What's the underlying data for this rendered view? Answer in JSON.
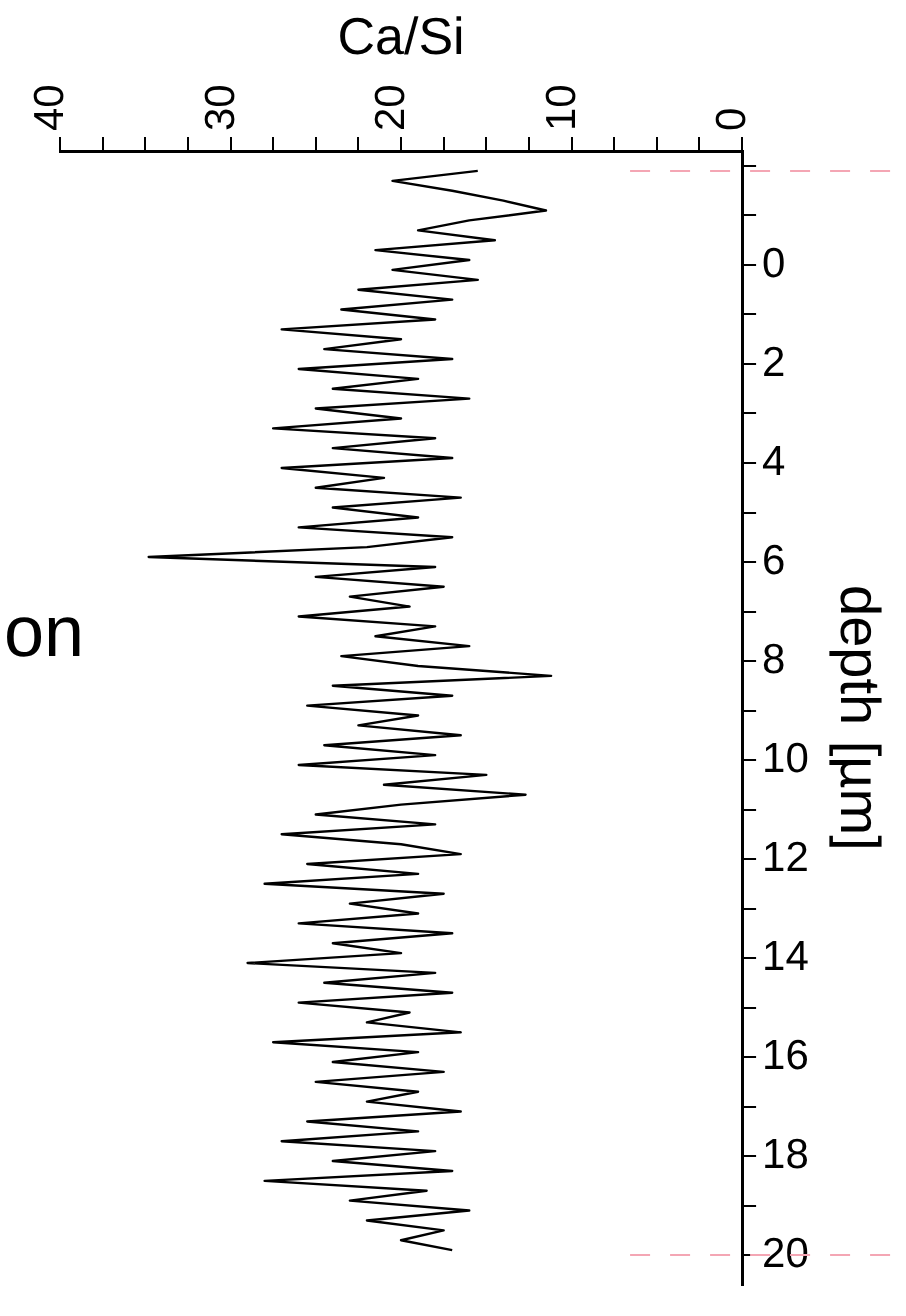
{
  "chart_data": {
    "type": "line",
    "xlabel": "Ca/Si",
    "ylabel": "depth [µm]",
    "annotations": [
      "on"
    ],
    "xlim": [
      40,
      0
    ],
    "xticks": [
      0,
      {
        "value": 2.5,
        "label": null
      },
      {
        "value": 5,
        "label": null
      },
      {
        "value": 7.5,
        "label": null
      },
      10,
      {
        "value": 12.5,
        "label": null
      },
      {
        "value": 15,
        "label": null
      },
      {
        "value": 17.5,
        "label": null
      },
      20,
      {
        "value": 22.5,
        "label": null
      },
      {
        "value": 25,
        "label": null
      },
      {
        "value": 27.5,
        "label": null
      },
      30,
      {
        "value": 32.5,
        "label": null
      },
      {
        "value": 35,
        "label": null
      },
      {
        "value": 37.5,
        "label": null
      },
      40
    ],
    "ylim": [
      20.6,
      -2.3
    ],
    "yticks": [
      {
        "value": -2,
        "label": null
      },
      {
        "value": -1,
        "label": null
      },
      0,
      {
        "value": 1,
        "label": null
      },
      2,
      {
        "value": 3,
        "label": null
      },
      4,
      {
        "value": 5,
        "label": null
      },
      6,
      {
        "value": 7,
        "label": null
      },
      8,
      {
        "value": 9,
        "label": null
      },
      10,
      {
        "value": 11,
        "label": null
      },
      12,
      {
        "value": 13,
        "label": null
      },
      14,
      {
        "value": 15,
        "label": null
      },
      16,
      {
        "value": 17,
        "label": null
      },
      18,
      {
        "value": 19,
        "label": null
      },
      20
    ],
    "grid": false,
    "legend": false,
    "marker": "none",
    "line_style": "solid",
    "ref_lines": [
      {
        "axis": "y",
        "value": -1.9,
        "color": "#f4a6b4",
        "line_style": "dashed"
      },
      {
        "axis": "y",
        "value": 20,
        "color": "#f4a6b4",
        "line_style": "dashed"
      }
    ],
    "series": [
      {
        "color": "#000000",
        "values": [
          -1.9,
          -1.7,
          -1.5,
          -1.3,
          -1.1,
          -0.9,
          -0.7,
          -0.5,
          -0.3,
          -0.1,
          0.1,
          0.3,
          0.5,
          0.7,
          0.9,
          1.1,
          1.3,
          1.5,
          1.7,
          1.9,
          2.1,
          2.3,
          2.5,
          2.7,
          2.9,
          3.1,
          3.3,
          3.5,
          3.7,
          3.9,
          4.1,
          4.3,
          4.5,
          4.7,
          4.9,
          5.1,
          5.3,
          5.5,
          5.7,
          5.9,
          6.1,
          6.3,
          6.5,
          6.7,
          6.9,
          7.1,
          7.3,
          7.5,
          7.7,
          7.9,
          8.1,
          8.3,
          8.5,
          8.7,
          8.9,
          9.1,
          9.3,
          9.5,
          9.7,
          9.9,
          10.1,
          10.3,
          10.5,
          10.7,
          10.9,
          11.1,
          11.3,
          11.5,
          11.7,
          11.9,
          12.1,
          12.3,
          12.5,
          12.7,
          12.9,
          13.1,
          13.3,
          13.5,
          13.7,
          13.9,
          14.1,
          14.3,
          14.5,
          14.7,
          14.9,
          15.1,
          15.3,
          15.5,
          15.7,
          15.9,
          16.1,
          16.3,
          16.5,
          16.7,
          16.9,
          17.1,
          17.3,
          17.5,
          17.7,
          17.9,
          18.1,
          18.3,
          18.5,
          18.7,
          18.9,
          19.1,
          19.3,
          19.5,
          19.7,
          19.9
        ],
        "x": [
          15.5,
          20.5,
          17,
          14,
          11.5,
          16,
          19,
          14.5,
          21.5,
          16,
          20.5,
          15.5,
          22.5,
          17,
          23.5,
          18,
          27,
          20,
          24.5,
          17,
          26,
          19,
          24,
          16,
          25,
          20,
          27.5,
          18,
          24,
          17,
          27,
          21,
          25,
          16.5,
          24,
          19,
          26,
          17,
          22,
          34.8,
          18,
          25,
          17.5,
          23,
          19.5,
          26,
          18,
          21.5,
          16,
          23.5,
          19,
          11.2,
          24,
          17,
          25.5,
          19,
          22.5,
          16.5,
          24.5,
          18,
          26,
          15,
          21,
          12.7,
          20,
          25,
          18,
          27,
          20,
          16.5,
          25.5,
          19,
          28,
          17.5,
          23,
          19,
          26,
          17,
          24,
          20,
          29,
          18,
          24.5,
          17,
          26,
          19.5,
          22,
          16.5,
          27.5,
          19,
          24,
          17.5,
          25,
          19,
          22,
          16.5,
          25.5,
          19,
          27,
          18,
          24,
          17,
          28,
          18.5,
          23,
          16,
          22,
          17.5,
          20,
          17
        ]
      }
    ]
  }
}
